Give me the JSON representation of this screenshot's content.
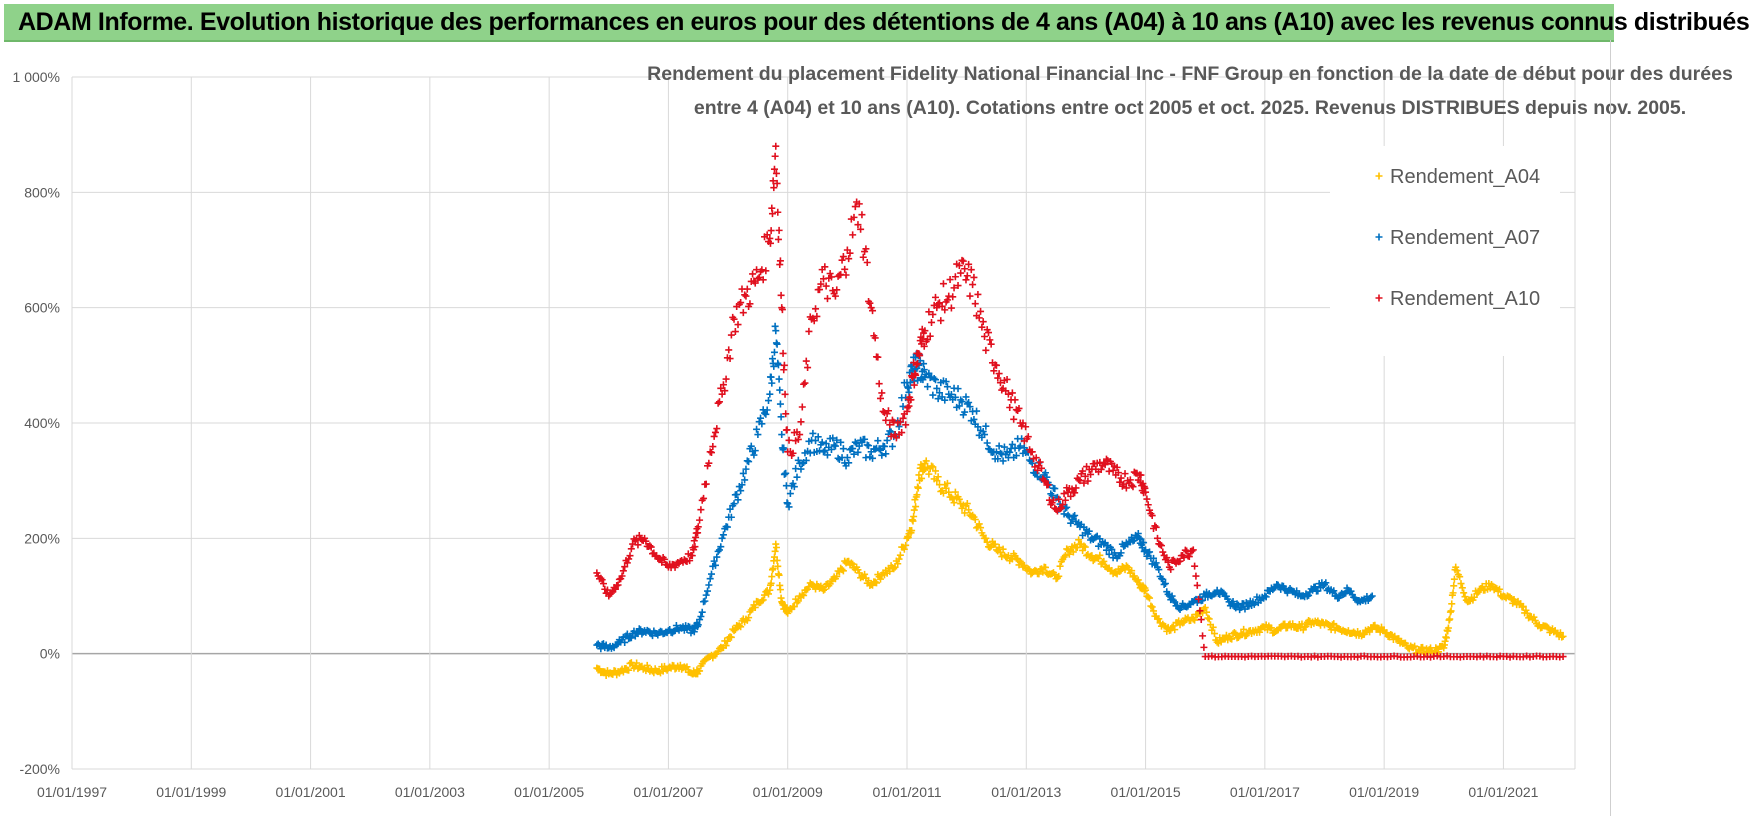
{
  "banner": {
    "title": "ADAM Informe. Evolution historique des performances en euros pour des détentions de 4 ans (A04) à 10 ans (A10) avec les revenus connus distribués"
  },
  "chart_data": {
    "type": "scatter",
    "title_line1": "Rendement du placement Fidelity National Financial Inc - FNF Group en fonction de la date de début pour des durées",
    "title_line2": "entre 4 (A04) et 10 ans (A10). Cotations entre oct 2005 et oct. 2025. Revenus DISTRIBUES depuis nov. 2005.",
    "x_tick_labels": [
      "01/01/1997",
      "01/01/1999",
      "01/01/2001",
      "01/01/2003",
      "01/01/2005",
      "01/01/2007",
      "01/01/2009",
      "01/01/2011",
      "01/01/2013",
      "01/01/2015",
      "01/01/2017",
      "01/01/2019",
      "01/01/2021"
    ],
    "y_tick_labels": [
      "1 000%",
      "800%",
      "600%",
      "400%",
      "200%",
      "0%",
      "-200%"
    ],
    "xlim": [
      1997.0,
      2022.2
    ],
    "ylim": [
      -200,
      1000
    ],
    "grid": true,
    "legend_position": "right",
    "series": [
      {
        "name": "Rendement_A04",
        "color": "#ffc000",
        "x": [
          2005.8,
          2006.0,
          2006.2,
          2006.4,
          2006.6,
          2006.8,
          2007.0,
          2007.2,
          2007.4,
          2007.5,
          2007.7,
          2007.9,
          2008.1,
          2008.3,
          2008.5,
          2008.7,
          2008.8,
          2008.9,
          2009.0,
          2009.2,
          2009.4,
          2009.6,
          2009.8,
          2010.0,
          2010.2,
          2010.4,
          2010.6,
          2010.8,
          2011.0,
          2011.1,
          2011.2,
          2011.3,
          2011.5,
          2011.7,
          2011.9,
          2012.1,
          2012.3,
          2012.5,
          2012.7,
          2012.9,
          2013.1,
          2013.3,
          2013.5,
          2013.7,
          2013.9,
          2014.1,
          2014.3,
          2014.5,
          2014.7,
          2014.9,
          2015.0,
          2015.2,
          2015.4,
          2015.6,
          2015.8,
          2016.0,
          2016.2,
          2016.4,
          2016.6,
          2016.8,
          2017.0,
          2017.2,
          2017.4,
          2017.6,
          2017.8,
          2018.0,
          2018.2,
          2018.4,
          2018.6,
          2018.8,
          2019.0,
          2019.2,
          2019.4,
          2019.6,
          2019.8,
          2020.0,
          2020.1,
          2020.2,
          2020.4,
          2020.6,
          2020.8,
          2021.0,
          2021.2,
          2021.4,
          2021.6,
          2021.8,
          2022.0
        ],
        "y": [
          -25,
          -35,
          -30,
          -20,
          -25,
          -30,
          -25,
          -20,
          -35,
          -30,
          -5,
          10,
          40,
          60,
          90,
          110,
          190,
          90,
          70,
          100,
          120,
          110,
          130,
          160,
          140,
          120,
          140,
          150,
          200,
          230,
          310,
          330,
          300,
          280,
          260,
          240,
          200,
          180,
          170,
          160,
          140,
          150,
          130,
          180,
          190,
          170,
          160,
          140,
          150,
          120,
          110,
          60,
          40,
          55,
          60,
          80,
          20,
          30,
          35,
          40,
          45,
          40,
          50,
          45,
          55,
          50,
          45,
          40,
          35,
          45,
          40,
          25,
          10,
          5,
          5,
          10,
          60,
          150,
          90,
          110,
          120,
          100,
          90,
          70,
          50,
          40,
          30
        ]
      },
      {
        "name": "Rendement_A07",
        "color": "#0070c0",
        "x": [
          2005.8,
          2006.0,
          2006.2,
          2006.4,
          2006.6,
          2006.8,
          2007.0,
          2007.2,
          2007.4,
          2007.5,
          2007.7,
          2007.9,
          2008.1,
          2008.3,
          2008.5,
          2008.7,
          2008.8,
          2008.9,
          2009.0,
          2009.2,
          2009.4,
          2009.6,
          2009.8,
          2010.0,
          2010.2,
          2010.4,
          2010.6,
          2010.8,
          2011.0,
          2011.1,
          2011.2,
          2011.3,
          2011.5,
          2011.7,
          2011.9,
          2012.1,
          2012.3,
          2012.5,
          2012.7,
          2012.9,
          2013.1,
          2013.3,
          2013.5,
          2013.7,
          2013.9,
          2014.1,
          2014.3,
          2014.5,
          2014.7,
          2014.9,
          2015.0,
          2015.2,
          2015.4,
          2015.6,
          2015.8,
          2016.0,
          2016.2,
          2016.4,
          2016.6,
          2016.8,
          2017.0,
          2017.2,
          2017.4,
          2017.6,
          2017.8,
          2018.0,
          2018.2,
          2018.4,
          2018.6,
          2018.8
        ],
        "y": [
          15,
          10,
          20,
          35,
          40,
          35,
          40,
          45,
          40,
          50,
          130,
          200,
          260,
          320,
          380,
          450,
          560,
          380,
          260,
          330,
          370,
          350,
          360,
          340,
          360,
          350,
          360,
          380,
          470,
          490,
          500,
          480,
          460,
          450,
          440,
          420,
          380,
          350,
          340,
          360,
          330,
          310,
          270,
          240,
          220,
          200,
          190,
          170,
          190,
          200,
          180,
          150,
          100,
          80,
          90,
          100,
          110,
          90,
          80,
          90,
          100,
          120,
          110,
          100,
          110,
          120,
          100,
          110,
          90,
          100
        ]
      },
      {
        "name": "Rendement_A10",
        "color": "#e0101e",
        "x": [
          2005.8,
          2006.0,
          2006.2,
          2006.4,
          2006.6,
          2006.8,
          2007.0,
          2007.2,
          2007.4,
          2007.5,
          2007.7,
          2007.9,
          2008.1,
          2008.3,
          2008.5,
          2008.7,
          2008.8,
          2008.9,
          2009.0,
          2009.2,
          2009.4,
          2009.6,
          2009.8,
          2010.0,
          2010.2,
          2010.4,
          2010.6,
          2010.8,
          2011.0,
          2011.1,
          2011.2,
          2011.3,
          2011.5,
          2011.7,
          2011.9,
          2012.1,
          2012.3,
          2012.5,
          2012.7,
          2012.9,
          2013.1,
          2013.3,
          2013.5,
          2013.7,
          2013.9,
          2014.1,
          2014.3,
          2014.5,
          2014.7,
          2014.9,
          2015.0,
          2015.2,
          2015.4,
          2015.6,
          2015.8,
          2016.0,
          2016.5,
          2017.0,
          2017.5,
          2018.0,
          2018.5,
          2019.0,
          2019.5,
          2020.0,
          2020.5,
          2021.0,
          2021.5,
          2022.0
        ],
        "y": [
          140,
          100,
          130,
          190,
          200,
          170,
          150,
          160,
          170,
          220,
          350,
          450,
          580,
          620,
          650,
          720,
          880,
          600,
          350,
          380,
          580,
          650,
          620,
          700,
          780,
          600,
          420,
          380,
          420,
          480,
          520,
          560,
          600,
          620,
          660,
          640,
          550,
          500,
          450,
          400,
          350,
          300,
          250,
          280,
          300,
          320,
          330,
          310,
          300,
          310,
          280,
          200,
          150,
          170,
          180,
          -5,
          -5,
          -5,
          -5,
          -5,
          -5,
          -5,
          -5,
          -5,
          -5,
          -5,
          -5,
          -5
        ]
      }
    ]
  }
}
